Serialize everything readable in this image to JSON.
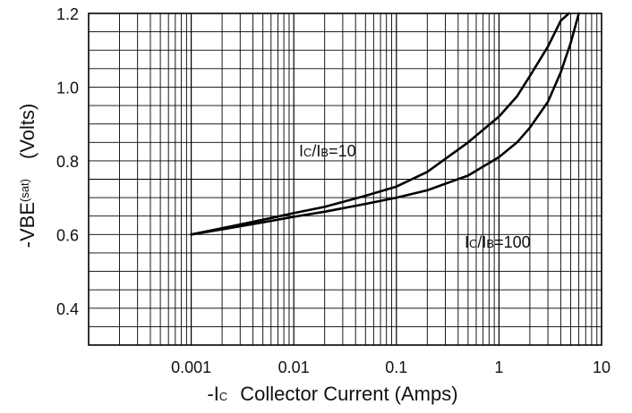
{
  "chart_data": {
    "type": "line",
    "xscale": "log",
    "xlim": [
      0.0001,
      10
    ],
    "ylim": [
      0.3,
      1.2
    ],
    "grid": true,
    "x_tick_labels": [
      "0.001",
      "0.01",
      "0.1",
      "1",
      "10"
    ],
    "y_tick_labels": [
      "0.4",
      "0.6",
      "0.8",
      "1.0",
      "1.2"
    ],
    "xlabel": {
      "prefix": "-I",
      "sub": "C",
      "text": "Collector Current (Amps)"
    },
    "ylabel": {
      "prefix": "-VBE",
      "sub": "(sat)",
      "unit": "(Volts)"
    },
    "series": [
      {
        "name": "IC/IB=10",
        "label_parts": [
          "I",
          "C",
          "/I",
          "B",
          "=10"
        ],
        "x": [
          0.001,
          0.002,
          0.005,
          0.01,
          0.02,
          0.05,
          0.1,
          0.2,
          0.5,
          1,
          1.5,
          2,
          3,
          4,
          4.8
        ],
        "y": [
          0.6,
          0.617,
          0.64,
          0.658,
          0.675,
          0.705,
          0.73,
          0.77,
          0.85,
          0.92,
          0.975,
          1.03,
          1.11,
          1.18,
          1.205
        ]
      },
      {
        "name": "IC/IB=100",
        "label_parts": [
          "I",
          "C",
          "/I",
          "B",
          "=100"
        ],
        "x": [
          0.001,
          0.002,
          0.005,
          0.01,
          0.02,
          0.05,
          0.1,
          0.2,
          0.5,
          1,
          1.5,
          2,
          3,
          4,
          5,
          6
        ],
        "y": [
          0.6,
          0.614,
          0.633,
          0.648,
          0.662,
          0.683,
          0.7,
          0.72,
          0.76,
          0.81,
          0.85,
          0.89,
          0.96,
          1.04,
          1.12,
          1.205
        ]
      }
    ]
  }
}
